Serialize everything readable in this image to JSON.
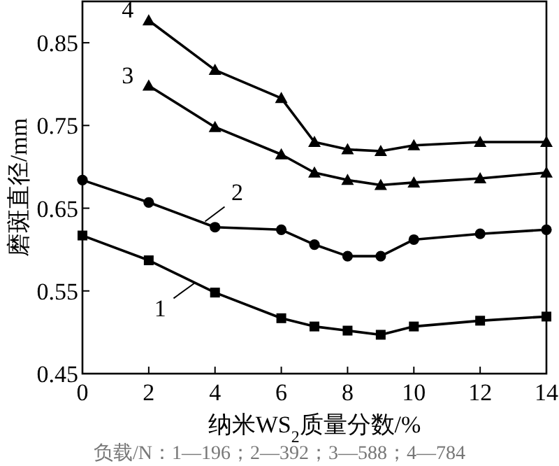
{
  "chart_data": {
    "type": "line",
    "xlabel": "纳米WS$_{2}$质量分数/%",
    "ylabel": "磨斑直径/mm",
    "xlim": [
      0,
      14
    ],
    "ylim": [
      0.45,
      0.9
    ],
    "xticks": [
      0,
      2,
      4,
      6,
      8,
      10,
      12,
      14
    ],
    "yticks": [
      0.45,
      0.55,
      0.65,
      0.75,
      0.85
    ],
    "grid": false,
    "line_style": "solid",
    "series": [
      {
        "color": "#000000",
        "marker": "square",
        "x": [
          0,
          2,
          4,
          6,
          7,
          8,
          9,
          10,
          12,
          14
        ],
        "values": [
          0.617,
          0.587,
          0.548,
          0.517,
          0.507,
          0.502,
          0.497,
          0.507,
          0.514,
          0.519
        ]
      },
      {
        "color": "#000000",
        "marker": "circle",
        "x": [
          0,
          2,
          4,
          6,
          7,
          8,
          9,
          10,
          12,
          14
        ],
        "values": [
          0.684,
          0.657,
          0.627,
          0.624,
          0.606,
          0.592,
          0.592,
          0.612,
          0.619,
          0.624
        ]
      },
      {
        "color": "#000000",
        "marker": "triangle",
        "x": [
          2,
          4,
          6,
          7,
          8,
          9,
          10,
          12,
          14
        ],
        "values": [
          0.798,
          0.748,
          0.715,
          0.693,
          0.684,
          0.678,
          0.681,
          0.686,
          0.693
        ]
      },
      {
        "color": "#000000",
        "marker": "triangle",
        "x": [
          2,
          4,
          6,
          7,
          8,
          9,
          10,
          12,
          14
        ],
        "values": [
          0.877,
          0.817,
          0.783,
          0.73,
          0.721,
          0.719,
          0.726,
          0.73,
          0.73
        ]
      }
    ],
    "annotations": [
      {
        "text": "1",
        "x": 3.4,
        "y": 0.56
      },
      {
        "text": "2",
        "x": 3.7,
        "y": 0.634
      },
      {
        "text": "3",
        "x": 2,
        "y": 0.798
      },
      {
        "text": "4",
        "x": 2,
        "y": 0.877
      },
      "负载/N：1—196；2—392；3—588；4—784"
    ]
  }
}
